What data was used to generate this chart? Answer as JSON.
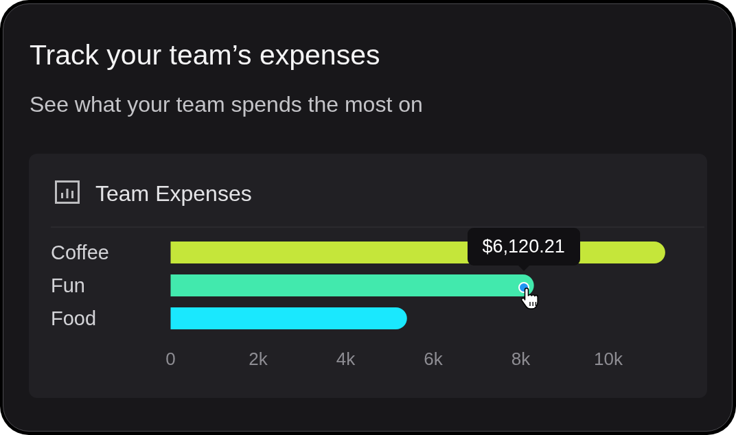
{
  "chart_data": {
    "type": "bar",
    "orientation": "horizontal",
    "title": "Track your team’s expenses",
    "subtitle": "See what your team spends the most on",
    "categories": [
      "Coffee",
      "Fun",
      "Food"
    ],
    "values": [
      11300,
      8300,
      5400
    ],
    "colors": [
      "#c5e63a",
      "#42e9ad",
      "#1ae8fe"
    ],
    "xlim": [
      0,
      11300
    ],
    "xticks": [
      0,
      {
        "value": 2000,
        "label": "2k"
      },
      {
        "value": 4000,
        "label": "4k"
      },
      {
        "value": 6000,
        "label": "6k"
      },
      {
        "value": 8000,
        "label": "8k"
      },
      {
        "value": 10000,
        "label": "10k"
      }
    ],
    "annotations": [
      "Team Expenses",
      {
        "text": "$6,120.21",
        "x": 8300,
        "y": "Fun"
      }
    ]
  }
}
